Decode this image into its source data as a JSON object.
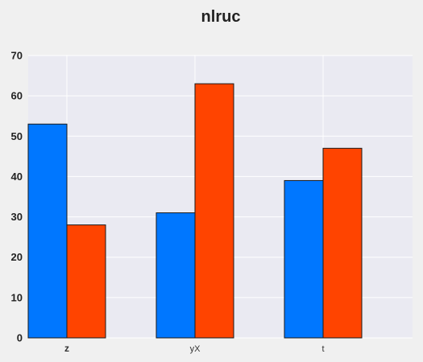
{
  "chart_data": {
    "type": "bar",
    "title": "nlruc",
    "xlabel": "",
    "ylabel": "",
    "categories": [
      "z",
      "yX",
      "t"
    ],
    "series": [
      {
        "values": [
          53,
          31,
          39
        ],
        "color": "#0077ff"
      },
      {
        "values": [
          28,
          63,
          47
        ],
        "color": "#ff4400"
      }
    ],
    "ylim": [
      0,
      70
    ],
    "yticks": [
      0,
      10,
      20,
      30,
      40,
      50,
      60,
      70
    ],
    "grid": true,
    "colors": {
      "plot_background": "#eaeaf2",
      "page_background": "#f0f0f0",
      "grid": "#ffffff",
      "bar_edge": "#1a1a1a"
    }
  }
}
